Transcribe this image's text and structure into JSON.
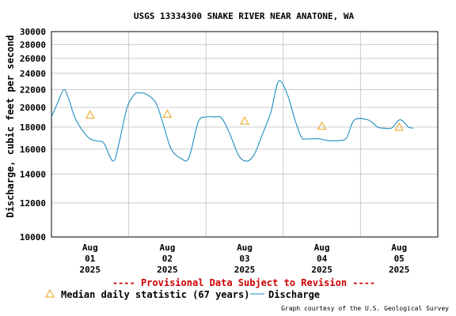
{
  "chart_data": {
    "type": "line",
    "title": "USGS 13334300 SNAKE RIVER NEAR ANATONE, WA",
    "ylabel": "Discharge, cubic feet per second",
    "xlabel": "",
    "y_scale": "log",
    "ylim": [
      10000,
      30000
    ],
    "y_ticks": [
      {
        "value": 10000,
        "label": "10000"
      },
      {
        "value": 12000,
        "label": "12000"
      },
      {
        "value": 14000,
        "label": "14000"
      },
      {
        "value": 16000,
        "label": "16000"
      },
      {
        "value": 18000,
        "label": "18000"
      },
      {
        "value": 20000,
        "label": "20000"
      },
      {
        "value": 22000,
        "label": "22000"
      },
      {
        "value": 24000,
        "label": "24000"
      },
      {
        "value": 26000,
        "label": "26000"
      },
      {
        "value": 28000,
        "label": "28000"
      },
      {
        "value": 30000,
        "label": "30000"
      }
    ],
    "xlim": [
      0,
      5
    ],
    "x_ticks": [
      {
        "value": 0.5,
        "month": "Aug",
        "day": "01",
        "year": "2025"
      },
      {
        "value": 1.5,
        "month": "Aug",
        "day": "02",
        "year": "2025"
      },
      {
        "value": 2.5,
        "month": "Aug",
        "day": "03",
        "year": "2025"
      },
      {
        "value": 3.5,
        "month": "Aug",
        "day": "04",
        "year": "2025"
      },
      {
        "value": 4.5,
        "month": "Aug",
        "day": "05",
        "year": "2025"
      }
    ],
    "grid": true,
    "series": [
      {
        "name": "Discharge",
        "color": "#1f8fbf",
        "x": [
          0,
          0.08,
          0.16,
          0.22,
          0.3,
          0.4,
          0.5,
          0.6,
          0.68,
          0.8,
          0.88,
          0.98,
          1.08,
          1.14,
          1.22,
          1.35,
          1.45,
          1.55,
          1.68,
          1.78,
          1.9,
          2.0,
          2.1,
          2.2,
          2.3,
          2.42,
          2.52,
          2.62,
          2.74,
          2.84,
          2.94,
          3.05,
          3.16,
          3.24,
          3.3,
          3.38,
          3.48,
          3.58,
          3.72,
          3.82,
          3.92,
          4.1,
          4.22,
          4.3,
          4.4,
          4.5,
          4.56,
          4.62,
          4.68
        ],
        "values": [
          19000,
          20500,
          22000,
          21000,
          19000,
          17700,
          16900,
          16700,
          16500,
          15000,
          16700,
          20000,
          21500,
          21600,
          21500,
          20500,
          18200,
          16000,
          15200,
          15300,
          18500,
          19000,
          19000,
          18900,
          17500,
          15500,
          15000,
          15500,
          17500,
          19500,
          23000,
          21500,
          18500,
          17000,
          16900,
          16900,
          16900,
          16750,
          16750,
          17000,
          18700,
          18700,
          18000,
          17900,
          17900,
          18700,
          18500,
          18000,
          17900
        ]
      },
      {
        "name": "Median daily statistic (67 years)",
        "type": "scatter",
        "marker": "triangle",
        "color": "#e8a317",
        "x": [
          0.5,
          1.5,
          2.5,
          3.5,
          4.5
        ],
        "values": [
          19200,
          19300,
          18600,
          18100,
          18000
        ]
      }
    ],
    "legend": {
      "position": "bottom",
      "entries": [
        "Median daily statistic (67 years)",
        "Discharge"
      ]
    }
  },
  "warning": {
    "text": "---- Provisional Data Subject to Revision ----",
    "color": "#cc0000"
  },
  "credit": "Graph courtesy of the U.S. Geological Survey"
}
